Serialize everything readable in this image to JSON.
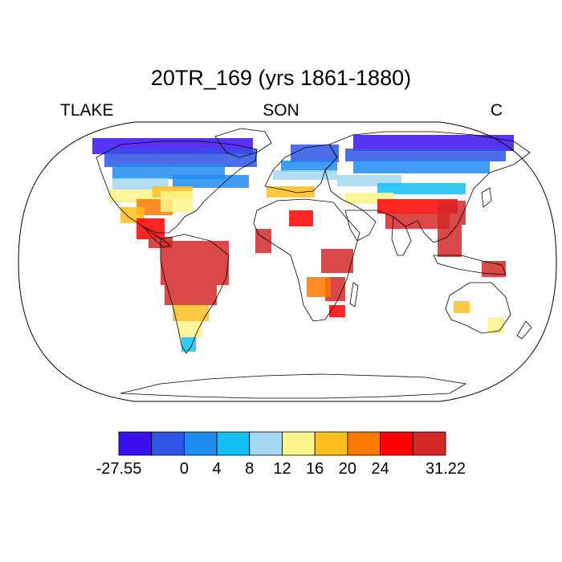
{
  "title": "20TR_169 (yrs 1861-1880)",
  "left_label": "TLAKE",
  "center_label": "SON",
  "right_label": "C",
  "colorbar": {
    "colors": [
      "#3a10f0",
      "#2e55e6",
      "#1e8cf0",
      "#14bff5",
      "#a5d8f2",
      "#fff58a",
      "#ffbe1e",
      "#ff7800",
      "#ff0000",
      "#d42828"
    ],
    "ticks": [
      "-27.55",
      "0",
      "4",
      "8",
      "12",
      "16",
      "20",
      "24",
      "31.22"
    ],
    "tick_after_box": [
      0,
      2,
      3,
      4,
      5,
      6,
      7,
      8,
      10
    ]
  },
  "map": {
    "projection": "robinson",
    "land_fill": "#ffffff",
    "outline_color": "#000000"
  }
}
